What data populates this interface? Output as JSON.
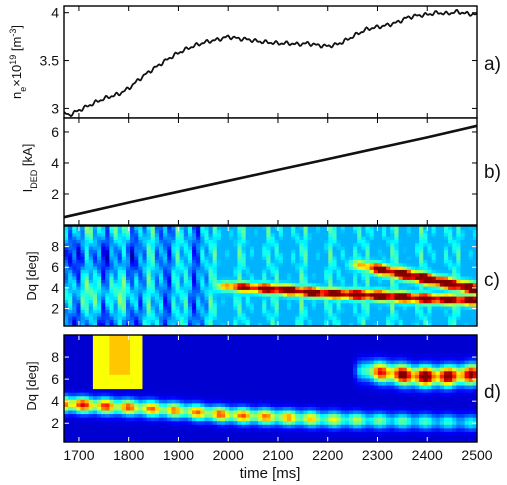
{
  "figure": {
    "xaxis": {
      "label": "time [ms]",
      "range": [
        1670,
        2500
      ],
      "ticks": [
        1700,
        1800,
        1900,
        2000,
        2100,
        2200,
        2300,
        2400,
        2500
      ],
      "tick_labels": [
        "1700",
        "1800",
        "1900",
        "2000",
        "2100",
        "2200",
        "2300",
        "2400",
        "2500"
      ]
    }
  },
  "chart_data": [
    {
      "type": "line",
      "panel_label": "a)",
      "ylabel_parts": {
        "base": "n",
        "sub": "e",
        "mid": "×10",
        "sup1": "19",
        "unit": " [m",
        "sup2": "-3",
        "close": "]"
      },
      "ylim": [
        2.9,
        4.07
      ],
      "yticks": [
        3,
        3.5,
        4
      ],
      "ytick_labels": [
        "3",
        "3.5",
        "4"
      ],
      "grid": false,
      "x": [
        1670,
        1680,
        1700,
        1720,
        1740,
        1760,
        1780,
        1800,
        1820,
        1840,
        1860,
        1880,
        1900,
        1920,
        1940,
        1960,
        1980,
        2000,
        2020,
        2040,
        2060,
        2080,
        2100,
        2120,
        2140,
        2160,
        2180,
        2200,
        2220,
        2240,
        2260,
        2280,
        2300,
        2320,
        2340,
        2360,
        2380,
        2400,
        2420,
        2440,
        2460,
        2480,
        2500
      ],
      "y": [
        2.95,
        2.93,
        2.98,
        3.03,
        3.08,
        3.12,
        3.15,
        3.21,
        3.3,
        3.38,
        3.45,
        3.52,
        3.58,
        3.63,
        3.67,
        3.7,
        3.72,
        3.75,
        3.73,
        3.72,
        3.7,
        3.69,
        3.68,
        3.68,
        3.67,
        3.68,
        3.66,
        3.65,
        3.67,
        3.72,
        3.78,
        3.83,
        3.85,
        3.87,
        3.9,
        3.95,
        3.97,
        3.98,
        4.0,
        3.99,
        4.01,
        3.99,
        3.98
      ]
    },
    {
      "type": "line",
      "panel_label": "b)",
      "ylabel_parts": {
        "base": "I",
        "sub": "DED",
        "unit": " [kA]"
      },
      "ylim": [
        0,
        6.9
      ],
      "yticks": [
        2,
        4,
        6
      ],
      "ytick_labels": [
        "2",
        "4",
        "6"
      ],
      "grid": false,
      "x": [
        1670,
        1700,
        1800,
        1900,
        2000,
        2100,
        2200,
        2300,
        2400,
        2500
      ],
      "y": [
        0.5,
        0.72,
        1.45,
        2.15,
        2.85,
        3.55,
        4.25,
        4.95,
        5.65,
        6.4
      ]
    },
    {
      "type": "heatmap",
      "panel_label": "c)",
      "ylabel": "Dq [deg]",
      "ylim": [
        0.3,
        10
      ],
      "yticks": [
        2,
        4,
        6,
        8
      ],
      "ytick_labels": [
        "2",
        "4",
        "6",
        "8"
      ],
      "colormap": "jet",
      "color_range": [
        0,
        1
      ],
      "background_level": 0.3,
      "ridges": [
        {
          "x": [
            2000,
            2100,
            2200,
            2300,
            2400,
            2500
          ],
          "y": [
            4.2,
            3.9,
            3.5,
            3.3,
            3.0,
            2.8
          ],
          "width": 0.45,
          "amplitude": [
            0.55,
            0.85,
            0.8,
            0.85,
            0.8,
            0.75
          ]
        },
        {
          "x": [
            2260,
            2300,
            2350,
            2400,
            2450,
            2500
          ],
          "y": [
            6.3,
            5.9,
            5.4,
            4.9,
            4.4,
            3.9
          ],
          "width": 0.5,
          "amplitude": [
            0.3,
            0.75,
            0.85,
            0.95,
            0.9,
            0.85
          ]
        }
      ]
    },
    {
      "type": "heatmap",
      "panel_label": "d)",
      "ylabel": "Dq [deg]",
      "ylim": [
        0.3,
        10
      ],
      "yticks": [
        2,
        4,
        6,
        8
      ],
      "ytick_labels": [
        "2",
        "4",
        "6",
        "8"
      ],
      "colormap": "jet",
      "color_range": [
        0,
        1
      ],
      "background_level": 0.08,
      "ridges": [
        {
          "x": [
            1670,
            1800,
            1900,
            2000,
            2100,
            2200,
            2300,
            2400,
            2500
          ],
          "y": [
            3.8,
            3.5,
            3.2,
            2.8,
            2.6,
            2.4,
            2.3,
            2.2,
            2.1
          ],
          "width": 0.7,
          "amplitude": [
            0.7,
            0.6,
            0.55,
            0.6,
            0.55,
            0.45,
            0.35,
            0.3,
            0.25
          ]
        },
        {
          "x": [
            2280,
            2320,
            2380,
            2440,
            2500
          ],
          "y": [
            6.8,
            6.6,
            6.3,
            6.3,
            6.5
          ],
          "width": 0.9,
          "amplitude": [
            0.5,
            0.75,
            0.85,
            0.8,
            0.75
          ]
        }
      ],
      "blocks": [
        {
          "x": [
            1730,
            1830
          ],
          "y": [
            5.2,
            10
          ],
          "level": 0.62
        },
        {
          "x": [
            1760,
            1805
          ],
          "y": [
            6.5,
            10
          ],
          "level": 0.68
        }
      ]
    }
  ]
}
